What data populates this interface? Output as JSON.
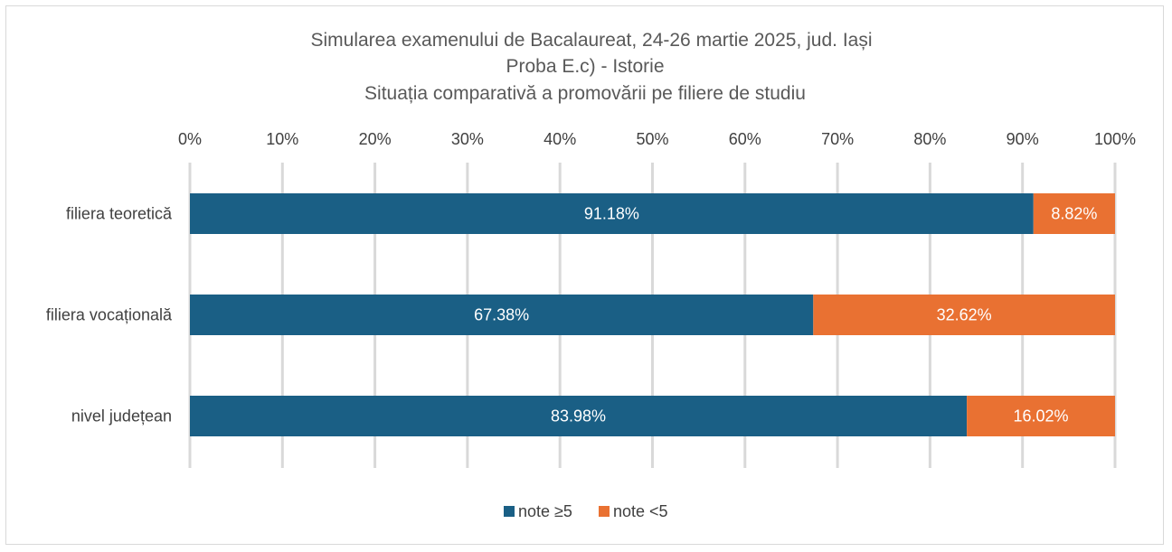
{
  "chart_data": {
    "type": "bar",
    "orientation": "horizontal",
    "stacked": "percent",
    "title_lines": [
      "Simularea examenului de Bacalaureat, 24-26 martie 2025, jud. Iași",
      "Proba E.c) - Istorie",
      "Situația comparativă a promovării pe filiere de studiu"
    ],
    "categories": [
      "filiera teoretică",
      "filiera vocațională",
      "nivel județean"
    ],
    "series": [
      {
        "name": "note ≥5",
        "color": "#1a5f85",
        "values": [
          91.18,
          67.38,
          83.98
        ],
        "labels": [
          "91.18%",
          "67.38%",
          "83.98%"
        ]
      },
      {
        "name": "note <5",
        "color": "#e97132",
        "values": [
          8.82,
          32.62,
          16.02
        ],
        "labels": [
          "8.82%",
          "32.62%",
          "16.02%"
        ]
      }
    ],
    "x_ticks": [
      "0%",
      "10%",
      "20%",
      "30%",
      "40%",
      "50%",
      "60%",
      "70%",
      "80%",
      "90%",
      "100%"
    ],
    "xlim": [
      0,
      100
    ],
    "x_axis_position": "top",
    "grid": true,
    "legend_position": "bottom"
  }
}
